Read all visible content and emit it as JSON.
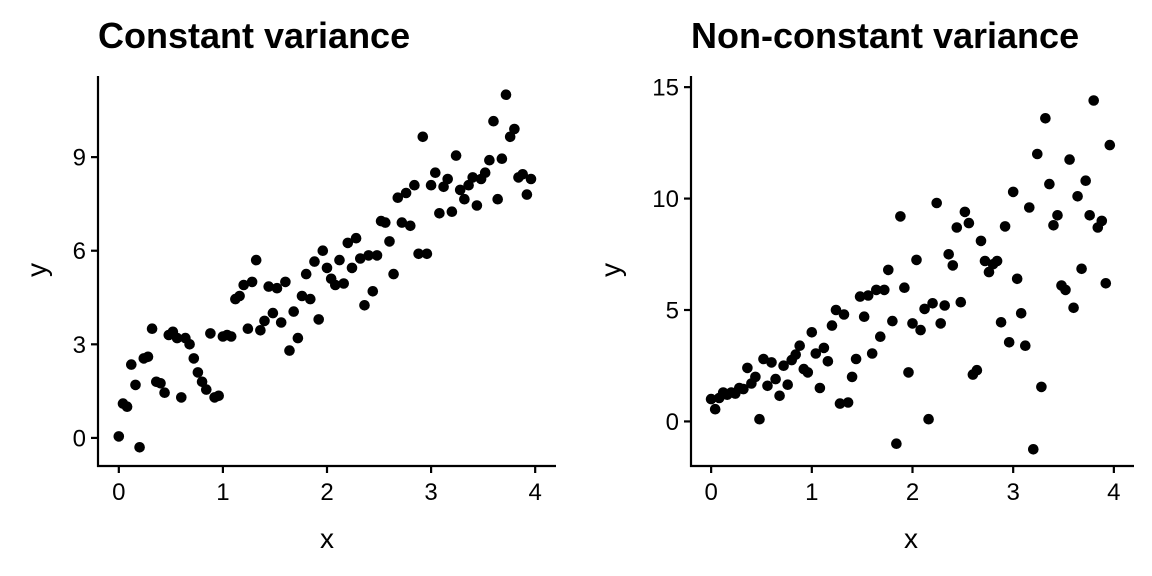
{
  "chart_data": [
    {
      "type": "scatter",
      "title": "Constant variance",
      "xlabel": "x",
      "ylabel": "y",
      "xlim": [
        -0.2,
        4.2
      ],
      "ylim": [
        -0.9,
        11.6
      ],
      "xticks": [
        0,
        1,
        2,
        3,
        4
      ],
      "yticks": [
        0,
        3,
        6,
        9
      ],
      "xtick_labels": [
        "0",
        "1",
        "2",
        "3",
        "4"
      ],
      "ytick_labels": [
        "0",
        "3",
        "6",
        "9"
      ],
      "grid": false,
      "points": [
        [
          0.0,
          0.05
        ],
        [
          0.04,
          1.1
        ],
        [
          0.08,
          1.0
        ],
        [
          0.12,
          2.35
        ],
        [
          0.16,
          1.7
        ],
        [
          0.2,
          -0.3
        ],
        [
          0.24,
          2.55
        ],
        [
          0.28,
          2.6
        ],
        [
          0.32,
          3.5
        ],
        [
          0.36,
          1.8
        ],
        [
          0.4,
          1.75
        ],
        [
          0.44,
          1.45
        ],
        [
          0.48,
          3.3
        ],
        [
          0.52,
          3.4
        ],
        [
          0.56,
          3.2
        ],
        [
          0.6,
          1.3
        ],
        [
          0.64,
          3.2
        ],
        [
          0.68,
          3.0
        ],
        [
          0.72,
          2.55
        ],
        [
          0.76,
          2.1
        ],
        [
          0.8,
          1.8
        ],
        [
          0.84,
          1.55
        ],
        [
          0.88,
          3.35
        ],
        [
          0.92,
          1.3
        ],
        [
          0.96,
          1.35
        ],
        [
          1.0,
          3.25
        ],
        [
          1.04,
          3.3
        ],
        [
          1.08,
          3.25
        ],
        [
          1.12,
          4.45
        ],
        [
          1.16,
          4.55
        ],
        [
          1.2,
          4.9
        ],
        [
          1.24,
          3.5
        ],
        [
          1.28,
          5.0
        ],
        [
          1.32,
          5.7
        ],
        [
          1.36,
          3.45
        ],
        [
          1.4,
          3.75
        ],
        [
          1.44,
          4.85
        ],
        [
          1.48,
          4.0
        ],
        [
          1.52,
          4.8
        ],
        [
          1.56,
          3.7
        ],
        [
          1.6,
          5.0
        ],
        [
          1.64,
          2.8
        ],
        [
          1.68,
          4.05
        ],
        [
          1.72,
          3.2
        ],
        [
          1.76,
          4.55
        ],
        [
          1.8,
          5.25
        ],
        [
          1.84,
          4.45
        ],
        [
          1.88,
          5.65
        ],
        [
          1.92,
          3.8
        ],
        [
          1.96,
          6.0
        ],
        [
          2.0,
          5.45
        ],
        [
          2.04,
          5.1
        ],
        [
          2.08,
          4.9
        ],
        [
          2.12,
          5.7
        ],
        [
          2.16,
          4.95
        ],
        [
          2.2,
          6.25
        ],
        [
          2.24,
          5.45
        ],
        [
          2.28,
          6.4
        ],
        [
          2.32,
          5.75
        ],
        [
          2.36,
          4.25
        ],
        [
          2.4,
          5.85
        ],
        [
          2.44,
          4.7
        ],
        [
          2.48,
          5.85
        ],
        [
          2.52,
          6.95
        ],
        [
          2.56,
          6.9
        ],
        [
          2.6,
          6.3
        ],
        [
          2.64,
          5.25
        ],
        [
          2.68,
          7.7
        ],
        [
          2.72,
          6.9
        ],
        [
          2.76,
          7.85
        ],
        [
          2.8,
          6.8
        ],
        [
          2.84,
          8.1
        ],
        [
          2.88,
          5.9
        ],
        [
          2.92,
          9.65
        ],
        [
          2.96,
          5.9
        ],
        [
          3.0,
          8.1
        ],
        [
          3.04,
          8.5
        ],
        [
          3.08,
          7.2
        ],
        [
          3.12,
          8.05
        ],
        [
          3.16,
          8.3
        ],
        [
          3.2,
          7.25
        ],
        [
          3.24,
          9.05
        ],
        [
          3.28,
          7.95
        ],
        [
          3.32,
          7.65
        ],
        [
          3.36,
          8.1
        ],
        [
          3.4,
          8.35
        ],
        [
          3.44,
          7.45
        ],
        [
          3.48,
          8.3
        ],
        [
          3.52,
          8.5
        ],
        [
          3.56,
          8.9
        ],
        [
          3.6,
          10.15
        ],
        [
          3.64,
          7.65
        ],
        [
          3.68,
          8.95
        ],
        [
          3.72,
          11.0
        ],
        [
          3.76,
          9.65
        ],
        [
          3.8,
          9.9
        ],
        [
          3.84,
          8.35
        ],
        [
          3.88,
          8.45
        ],
        [
          3.92,
          7.8
        ],
        [
          3.96,
          8.3
        ]
      ]
    },
    {
      "type": "scatter",
      "title": "Non-constant variance",
      "xlabel": "x",
      "ylabel": "y",
      "xlim": [
        -0.2,
        4.2
      ],
      "ylim": [
        -2.0,
        15.5
      ],
      "xticks": [
        0,
        1,
        2,
        3,
        4
      ],
      "yticks": [
        0,
        5,
        10,
        15
      ],
      "xtick_labels": [
        "0",
        "1",
        "2",
        "3",
        "4"
      ],
      "ytick_labels": [
        "0",
        "5",
        "10",
        "15"
      ],
      "grid": false,
      "points": [
        [
          0.0,
          1.0
        ],
        [
          0.04,
          0.55
        ],
        [
          0.08,
          1.05
        ],
        [
          0.12,
          1.3
        ],
        [
          0.16,
          1.2
        ],
        [
          0.2,
          1.3
        ],
        [
          0.24,
          1.25
        ],
        [
          0.28,
          1.5
        ],
        [
          0.32,
          1.45
        ],
        [
          0.36,
          2.4
        ],
        [
          0.4,
          1.7
        ],
        [
          0.44,
          2.0
        ],
        [
          0.48,
          0.1
        ],
        [
          0.52,
          2.8
        ],
        [
          0.56,
          1.6
        ],
        [
          0.6,
          2.65
        ],
        [
          0.64,
          1.9
        ],
        [
          0.68,
          1.15
        ],
        [
          0.72,
          2.5
        ],
        [
          0.76,
          1.65
        ],
        [
          0.8,
          2.75
        ],
        [
          0.84,
          3.0
        ],
        [
          0.88,
          3.4
        ],
        [
          0.92,
          2.35
        ],
        [
          0.96,
          2.2
        ],
        [
          1.0,
          4.0
        ],
        [
          1.04,
          3.05
        ],
        [
          1.08,
          1.5
        ],
        [
          1.12,
          3.3
        ],
        [
          1.16,
          2.7
        ],
        [
          1.2,
          4.3
        ],
        [
          1.24,
          5.0
        ],
        [
          1.28,
          0.8
        ],
        [
          1.32,
          4.8
        ],
        [
          1.36,
          0.85
        ],
        [
          1.4,
          2.0
        ],
        [
          1.44,
          2.8
        ],
        [
          1.48,
          5.6
        ],
        [
          1.52,
          4.7
        ],
        [
          1.56,
          5.65
        ],
        [
          1.6,
          3.05
        ],
        [
          1.64,
          5.9
        ],
        [
          1.68,
          3.8
        ],
        [
          1.72,
          5.9
        ],
        [
          1.76,
          6.8
        ],
        [
          1.8,
          4.5
        ],
        [
          1.84,
          -1.0
        ],
        [
          1.88,
          9.2
        ],
        [
          1.92,
          6.0
        ],
        [
          1.96,
          2.2
        ],
        [
          2.0,
          4.4
        ],
        [
          2.04,
          7.25
        ],
        [
          2.08,
          4.1
        ],
        [
          2.12,
          5.05
        ],
        [
          2.16,
          0.1
        ],
        [
          2.2,
          5.3
        ],
        [
          2.24,
          9.8
        ],
        [
          2.28,
          4.4
        ],
        [
          2.32,
          5.2
        ],
        [
          2.36,
          7.5
        ],
        [
          2.4,
          7.0
        ],
        [
          2.44,
          8.7
        ],
        [
          2.48,
          5.35
        ],
        [
          2.52,
          9.4
        ],
        [
          2.56,
          8.9
        ],
        [
          2.6,
          2.1
        ],
        [
          2.64,
          2.3
        ],
        [
          2.68,
          8.1
        ],
        [
          2.72,
          7.2
        ],
        [
          2.76,
          6.7
        ],
        [
          2.8,
          7.05
        ],
        [
          2.84,
          7.2
        ],
        [
          2.88,
          4.45
        ],
        [
          2.92,
          8.75
        ],
        [
          2.96,
          3.55
        ],
        [
          3.0,
          10.3
        ],
        [
          3.04,
          6.4
        ],
        [
          3.08,
          4.85
        ],
        [
          3.12,
          3.4
        ],
        [
          3.16,
          9.6
        ],
        [
          3.2,
          -1.25
        ],
        [
          3.24,
          12.0
        ],
        [
          3.28,
          1.55
        ],
        [
          3.32,
          13.6
        ],
        [
          3.36,
          10.65
        ],
        [
          3.4,
          8.8
        ],
        [
          3.44,
          9.25
        ],
        [
          3.48,
          6.1
        ],
        [
          3.52,
          5.9
        ],
        [
          3.56,
          11.75
        ],
        [
          3.6,
          5.1
        ],
        [
          3.64,
          10.1
        ],
        [
          3.68,
          6.85
        ],
        [
          3.72,
          10.8
        ],
        [
          3.76,
          9.25
        ],
        [
          3.8,
          14.4
        ],
        [
          3.84,
          8.7
        ],
        [
          3.88,
          9.0
        ],
        [
          3.92,
          6.2
        ],
        [
          3.96,
          12.4
        ]
      ]
    }
  ]
}
